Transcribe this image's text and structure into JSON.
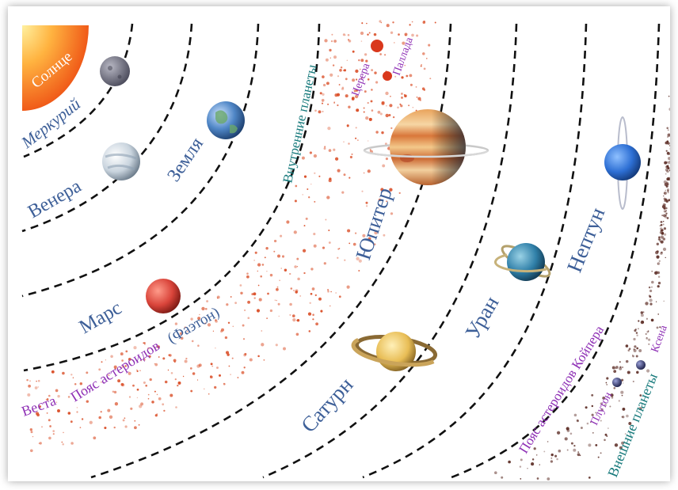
{
  "colors": {
    "planet_label": "#3d5f98",
    "belt_label": "#8e2fb5",
    "group_label": "#177a7c",
    "orbit": "#111111",
    "asteroid": "#d94a22",
    "kuiper_object": "#5a2a22",
    "sun": "#f06a1c"
  },
  "labels": {
    "sun": "Солнце",
    "mercury": "Меркурий",
    "venus": "Венера",
    "earth": "Земля",
    "mars": "Марс",
    "phaeton": "(Фаэтон)",
    "inner_planets": "Внутренние планеты",
    "ceres": "Церера",
    "pallas": "Паллада",
    "vesta": "Веста",
    "asteroid_belt": "Пояс астероидов",
    "jupiter": "Юпитер",
    "saturn": "Сатурн",
    "uranus": "Уран",
    "neptune": "Нептун",
    "kuiper_belt": "Пояс астероидов Койпера",
    "pluto": "Плутон",
    "xena": "Ксена",
    "outer_planets": "Внешние планеты"
  },
  "icons": {
    "sun": "sun-icon",
    "mercury": "mercury-icon",
    "venus": "venus-icon",
    "earth": "earth-icon",
    "mars": "mars-icon",
    "ceres": "ceres-icon",
    "pallas": "pallas-icon",
    "jupiter": "jupiter-icon",
    "saturn": "saturn-icon",
    "uranus": "uranus-icon",
    "neptune": "neptune-icon",
    "pluto": "pluto-icon",
    "xena": "xena-icon"
  }
}
